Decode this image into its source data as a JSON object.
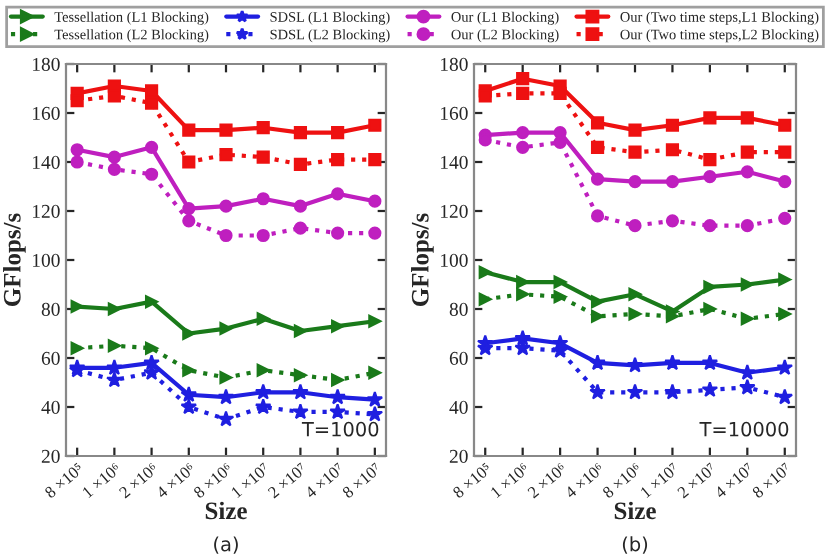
{
  "chart_data": [
    {
      "type": "line",
      "xlabel": "Size",
      "ylabel": "GFlops/s",
      "categories": [
        "8 ×10⁵",
        "1 ×10⁶",
        "2 ×10⁶",
        "4 ×10⁶",
        "8 ×10⁶",
        "1 ×10⁷",
        "2 ×10⁷",
        "4 ×10⁷",
        "8 ×10⁷"
      ],
      "ylim": [
        20,
        180
      ],
      "yticks": [
        20,
        40,
        60,
        80,
        100,
        120,
        140,
        160,
        180
      ],
      "legend": "top",
      "annotations": [
        "T=1000",
        "(a)"
      ],
      "series": [
        {
          "name": "Tessellation (L1 Blocking)",
          "color": "#1a7a1a",
          "marker": "triangle",
          "line_style": "solid",
          "values": [
            81,
            80,
            83,
            70,
            72,
            76,
            71,
            73,
            75
          ]
        },
        {
          "name": "Tessellation (L2 Blocking)",
          "color": "#1a7a1a",
          "marker": "triangle",
          "line_style": "dotted",
          "values": [
            64,
            65,
            64,
            55,
            52,
            55,
            53,
            51,
            54
          ]
        },
        {
          "name": "SDSL (L1 Blocking)",
          "color": "#1f1fe0",
          "marker": "star",
          "line_style": "solid",
          "values": [
            56,
            56,
            58,
            45,
            44,
            46,
            46,
            44,
            43
          ]
        },
        {
          "name": "SDSL (L2 Blocking)",
          "color": "#1f1fe0",
          "marker": "star",
          "line_style": "dotted",
          "values": [
            55,
            51,
            54,
            40,
            35,
            40,
            38,
            38,
            37
          ]
        },
        {
          "name": "Our (L1 Blocking)",
          "color": "#bf1fbf",
          "marker": "circle",
          "line_style": "solid",
          "values": [
            145,
            142,
            146,
            121,
            122,
            125,
            122,
            127,
            124
          ]
        },
        {
          "name": "Our (L2 Blocking)",
          "color": "#bf1fbf",
          "marker": "circle",
          "line_style": "dotted",
          "values": [
            140,
            137,
            135,
            116,
            110,
            110,
            113,
            111,
            111
          ]
        },
        {
          "name": "Our (Two time steps,L1 Blocking)",
          "color": "#ee1111",
          "marker": "square",
          "line_style": "solid",
          "values": [
            168,
            171,
            169,
            153,
            153,
            154,
            152,
            152,
            155
          ]
        },
        {
          "name": "Our (Two time steps,L2 Blocking)",
          "color": "#ee1111",
          "marker": "square",
          "line_style": "dotted",
          "values": [
            165,
            167,
            164,
            140,
            143,
            142,
            139,
            141,
            141
          ]
        }
      ]
    },
    {
      "type": "line",
      "xlabel": "Size",
      "ylabel": "GFlops/s",
      "categories": [
        "8 ×10⁵",
        "1 ×10⁶",
        "2 ×10⁶",
        "4 ×10⁶",
        "8 ×10⁶",
        "1 ×10⁷",
        "2 ×10⁷",
        "4 ×10⁷",
        "8 ×10⁷"
      ],
      "ylim": [
        20,
        180
      ],
      "yticks": [
        20,
        40,
        60,
        80,
        100,
        120,
        140,
        160,
        180
      ],
      "annotations": [
        "T=10000",
        "(b)"
      ],
      "series": [
        {
          "color": "#1a7a1a",
          "marker": "triangle",
          "line_style": "solid",
          "values": [
            95,
            91,
            91,
            83,
            86,
            79,
            89,
            90,
            92
          ]
        },
        {
          "color": "#1a7a1a",
          "marker": "triangle",
          "line_style": "dotted",
          "values": [
            84,
            86,
            85,
            77,
            78,
            77,
            80,
            76,
            78
          ]
        },
        {
          "color": "#1f1fe0",
          "marker": "star",
          "line_style": "solid",
          "values": [
            66,
            68,
            66,
            58,
            57,
            58,
            58,
            54,
            56
          ]
        },
        {
          "color": "#1f1fe0",
          "marker": "star",
          "line_style": "dotted",
          "values": [
            64,
            64,
            63,
            46,
            46,
            46,
            47,
            48,
            44
          ]
        },
        {
          "color": "#bf1fbf",
          "marker": "circle",
          "line_style": "solid",
          "values": [
            151,
            152,
            152,
            133,
            132,
            132,
            134,
            136,
            132
          ]
        },
        {
          "color": "#bf1fbf",
          "marker": "circle",
          "line_style": "dotted",
          "values": [
            149,
            146,
            148,
            118,
            114,
            116,
            114,
            114,
            117
          ]
        },
        {
          "color": "#ee1111",
          "marker": "square",
          "line_style": "solid",
          "values": [
            169,
            174,
            171,
            156,
            153,
            155,
            158,
            158,
            155
          ]
        },
        {
          "color": "#ee1111",
          "marker": "square",
          "line_style": "dotted",
          "values": [
            167,
            168,
            168,
            146,
            144,
            145,
            141,
            144,
            144
          ]
        }
      ]
    }
  ]
}
